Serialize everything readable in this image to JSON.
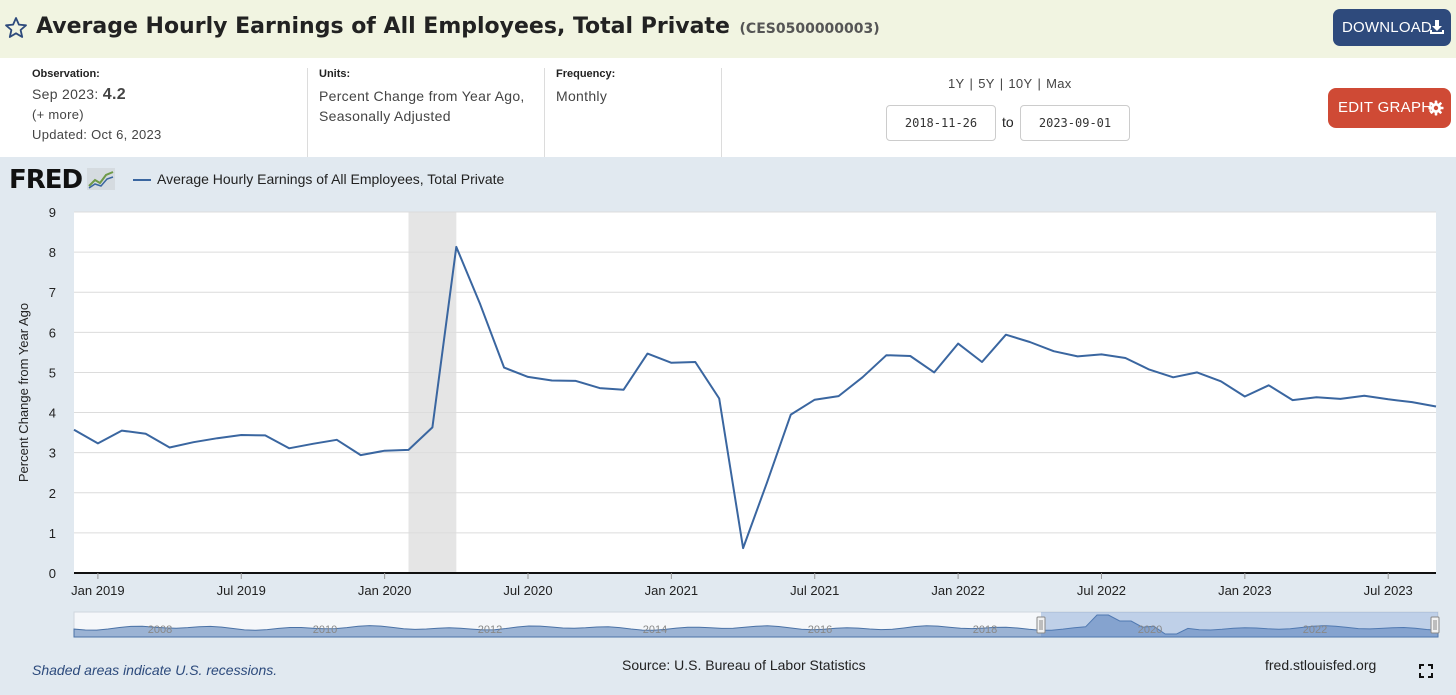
{
  "header": {
    "title": "Average Hourly Earnings of All Employees, Total Private",
    "series_id": "(CES0500000003)",
    "download_label": "DOWNLOAD",
    "icons": {
      "favorite": "star-icon",
      "download": "download-icon"
    }
  },
  "info": {
    "observation": {
      "label": "Observation:",
      "date": "Sep 2023:",
      "value": "4.2",
      "more": "(+ more)",
      "updated": "Updated: Oct 6, 2023"
    },
    "units": {
      "label": "Units:",
      "line1": "Percent Change from Year Ago,",
      "line2": "Seasonally Adjusted"
    },
    "frequency": {
      "label": "Frequency:",
      "value": "Monthly"
    },
    "ranges": [
      "1Y",
      "5Y",
      "10Y",
      "Max"
    ],
    "start_date": "2018-11-26",
    "to_label": "to",
    "end_date": "2023-09-01",
    "edit_label": "EDIT GRAPH"
  },
  "chart": {
    "logo_text": "FRED",
    "legend_label": "Average Hourly Earnings of All Employees, Total Private",
    "series_color": "#3a66a0",
    "recession_color": "#e5e5e5"
  },
  "footer": {
    "recession_note": "Shaded areas indicate U.S. recessions.",
    "source": "Source: U.S. Bureau of Labor Statistics",
    "site": "fred.stlouisfed.org"
  },
  "chart_data": {
    "type": "line",
    "title": "",
    "xlabel": "",
    "ylabel": "Percent Change from Year Ago",
    "ylim": [
      0,
      9
    ],
    "yticks": [
      0,
      1,
      2,
      3,
      4,
      5,
      6,
      7,
      8,
      9
    ],
    "xlim": [
      "2018-12",
      "2023-09"
    ],
    "xtick_labels": [
      {
        "date": "2019-01",
        "label": "Jan 2019"
      },
      {
        "date": "2019-07",
        "label": "Jul 2019"
      },
      {
        "date": "2020-01",
        "label": "Jan 2020"
      },
      {
        "date": "2020-07",
        "label": "Jul 2020"
      },
      {
        "date": "2021-01",
        "label": "Jan 2021"
      },
      {
        "date": "2021-07",
        "label": "Jul 2021"
      },
      {
        "date": "2022-01",
        "label": "Jan 2022"
      },
      {
        "date": "2022-07",
        "label": "Jul 2022"
      },
      {
        "date": "2023-01",
        "label": "Jan 2023"
      },
      {
        "date": "2023-07",
        "label": "Jul 2023"
      }
    ],
    "grid": true,
    "recessions": [
      {
        "start": "2020-02",
        "end": "2020-04"
      }
    ],
    "series": [
      {
        "name": "Average Hourly Earnings of All Employees, Total Private",
        "points": [
          [
            "2018-12",
            3.57
          ],
          [
            "2019-01",
            3.23
          ],
          [
            "2019-02",
            3.55
          ],
          [
            "2019-03",
            3.47
          ],
          [
            "2019-04",
            3.13
          ],
          [
            "2019-05",
            3.26
          ],
          [
            "2019-06",
            3.36
          ],
          [
            "2019-07",
            3.44
          ],
          [
            "2019-08",
            3.43
          ],
          [
            "2019-09",
            3.11
          ],
          [
            "2019-10",
            3.22
          ],
          [
            "2019-11",
            3.32
          ],
          [
            "2019-12",
            2.94
          ],
          [
            "2020-01",
            3.05
          ],
          [
            "2020-02",
            3.07
          ],
          [
            "2020-03",
            3.63
          ],
          [
            "2020-04",
            8.13
          ],
          [
            "2020-05",
            6.7
          ],
          [
            "2020-06",
            5.12
          ],
          [
            "2020-07",
            4.89
          ],
          [
            "2020-08",
            4.8
          ],
          [
            "2020-09",
            4.79
          ],
          [
            "2020-10",
            4.61
          ],
          [
            "2020-11",
            4.57
          ],
          [
            "2020-12",
            5.47
          ],
          [
            "2021-01",
            5.24
          ],
          [
            "2021-02",
            5.26
          ],
          [
            "2021-03",
            4.35
          ],
          [
            "2021-04",
            0.62
          ],
          [
            "2021-05",
            2.25
          ],
          [
            "2021-06",
            3.95
          ],
          [
            "2021-07",
            4.32
          ],
          [
            "2021-08",
            4.41
          ],
          [
            "2021-09",
            4.88
          ],
          [
            "2021-10",
            5.43
          ],
          [
            "2021-11",
            5.41
          ],
          [
            "2021-12",
            5.0
          ],
          [
            "2022-01",
            5.72
          ],
          [
            "2022-02",
            5.26
          ],
          [
            "2022-03",
            5.94
          ],
          [
            "2022-04",
            5.76
          ],
          [
            "2022-05",
            5.53
          ],
          [
            "2022-06",
            5.4
          ],
          [
            "2022-07",
            5.45
          ],
          [
            "2022-08",
            5.36
          ],
          [
            "2022-09",
            5.07
          ],
          [
            "2022-10",
            4.88
          ],
          [
            "2022-11",
            5.0
          ],
          [
            "2022-12",
            4.78
          ],
          [
            "2023-01",
            4.4
          ],
          [
            "2023-02",
            4.68
          ],
          [
            "2023-03",
            4.31
          ],
          [
            "2023-04",
            4.38
          ],
          [
            "2023-05",
            4.34
          ],
          [
            "2023-06",
            4.42
          ],
          [
            "2023-07",
            4.33
          ],
          [
            "2023-08",
            4.26
          ],
          [
            "2023-09",
            4.15
          ]
        ]
      }
    ],
    "navigator": {
      "tick_labels": [
        "2008",
        "2010",
        "2012",
        "2014",
        "2016",
        "2018",
        "2020",
        "2022"
      ]
    }
  }
}
